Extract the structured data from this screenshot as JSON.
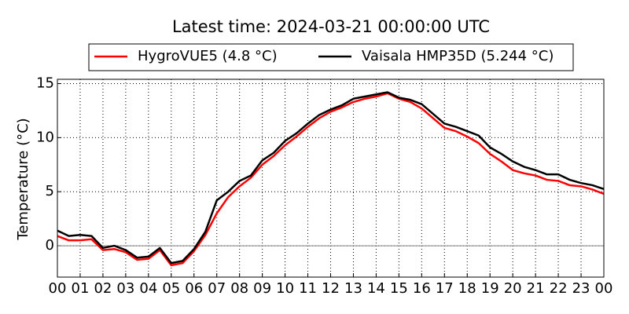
{
  "chart_data": {
    "type": "line",
    "title": "Latest time: 2024-03-21 00:00:00 UTC",
    "ylabel": "Temperature (°C)",
    "x": [
      0,
      0.5,
      1,
      1.5,
      2,
      2.5,
      3,
      3.5,
      4,
      4.5,
      5,
      5.5,
      6,
      6.5,
      7,
      7.5,
      8,
      8.5,
      9,
      9.5,
      10,
      10.5,
      11,
      11.5,
      12,
      12.5,
      13,
      13.5,
      14,
      14.5,
      15,
      15.5,
      16,
      16.5,
      17,
      17.5,
      18,
      18.5,
      19,
      19.5,
      20,
      20.5,
      21,
      21.5,
      22,
      22.5,
      23,
      23.5,
      24
    ],
    "series": [
      {
        "name": "HygroVUE5 (4.8 °C)",
        "color": "#ff0000",
        "values": [
          0.9,
          0.5,
          0.5,
          0.6,
          -0.4,
          -0.3,
          -0.6,
          -1.3,
          -1.2,
          -0.4,
          -1.8,
          -1.6,
          -0.5,
          1.0,
          3.0,
          4.5,
          5.5,
          6.3,
          7.5,
          8.3,
          9.3,
          10.1,
          11.0,
          11.8,
          12.4,
          12.8,
          13.3,
          13.6,
          13.8,
          14.1,
          13.6,
          13.3,
          12.7,
          11.8,
          10.9,
          10.6,
          10.1,
          9.5,
          8.5,
          7.8,
          7.0,
          6.7,
          6.5,
          6.1,
          6.0,
          5.6,
          5.5,
          5.2,
          4.8
        ]
      },
      {
        "name": "Vaisala HMP35D (5.244 °C)",
        "color": "#000000",
        "values": [
          1.4,
          0.9,
          1.0,
          0.9,
          -0.2,
          0.0,
          -0.4,
          -1.1,
          -1.0,
          -0.2,
          -1.6,
          -1.4,
          -0.3,
          1.3,
          4.2,
          5.0,
          6.0,
          6.5,
          7.9,
          8.6,
          9.7,
          10.4,
          11.3,
          12.1,
          12.6,
          13.0,
          13.6,
          13.8,
          14.0,
          14.2,
          13.7,
          13.5,
          13.1,
          12.2,
          11.3,
          11.0,
          10.6,
          10.2,
          9.1,
          8.5,
          7.8,
          7.3,
          7.0,
          6.6,
          6.6,
          6.1,
          5.8,
          5.6,
          5.244
        ]
      }
    ],
    "xlim": [
      0,
      24
    ],
    "xticks": [
      {
        "value": 0,
        "label": "00"
      },
      {
        "value": 1,
        "label": "01"
      },
      {
        "value": 2,
        "label": "02"
      },
      {
        "value": 3,
        "label": "03"
      },
      {
        "value": 4,
        "label": "04"
      },
      {
        "value": 5,
        "label": "05"
      },
      {
        "value": 6,
        "label": "06"
      },
      {
        "value": 7,
        "label": "07"
      },
      {
        "value": 8,
        "label": "08"
      },
      {
        "value": 9,
        "label": "09"
      },
      {
        "value": 10,
        "label": "10"
      },
      {
        "value": 11,
        "label": "11"
      },
      {
        "value": 12,
        "label": "12"
      },
      {
        "value": 13,
        "label": "13"
      },
      {
        "value": 14,
        "label": "14"
      },
      {
        "value": 15,
        "label": "15"
      },
      {
        "value": 16,
        "label": "16"
      },
      {
        "value": 17,
        "label": "17"
      },
      {
        "value": 18,
        "label": "18"
      },
      {
        "value": 19,
        "label": "19"
      },
      {
        "value": 20,
        "label": "20"
      },
      {
        "value": 21,
        "label": "21"
      },
      {
        "value": 22,
        "label": "22"
      },
      {
        "value": 23,
        "label": "23"
      },
      {
        "value": 24,
        "label": "00"
      }
    ],
    "ylim": [
      -2.9,
      15.4
    ],
    "yticks": [
      0,
      5,
      10,
      15
    ],
    "reference_line": 0,
    "grid": true,
    "legend": "top"
  }
}
